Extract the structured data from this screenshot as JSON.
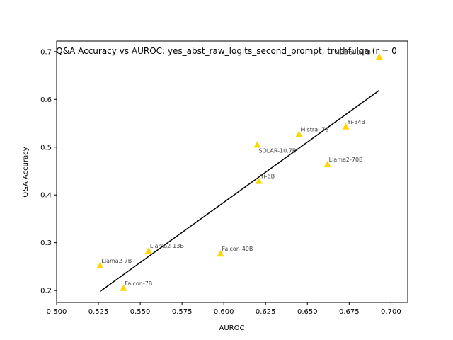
{
  "chart_data": {
    "type": "scatter",
    "title": "Q&A Accuracy vs AUROC: yes_abst_raw_logits_second_prompt, truthfulqa (r = 0",
    "xlabel": "AUROC",
    "ylabel": "Q&A Accuracy",
    "xlim": [
      0.5,
      0.71
    ],
    "ylim": [
      0.175,
      0.722
    ],
    "xticks": [
      0.5,
      0.525,
      0.55,
      0.575,
      0.6,
      0.625,
      0.65,
      0.675,
      0.7
    ],
    "xtick_labels": [
      "0.500",
      "0.525",
      "0.550",
      "0.575",
      "0.600",
      "0.625",
      "0.650",
      "0.675",
      "0.700"
    ],
    "yticks": [
      0.2,
      0.3,
      0.4,
      0.5,
      0.6,
      0.7
    ],
    "ytick_labels": [
      "0.2",
      "0.3",
      "0.4",
      "0.5",
      "0.6",
      "0.7"
    ],
    "marker_color": "#ffd700",
    "fit_line_color": "#000000",
    "points": [
      {
        "label": "Mixtral-8x7B",
        "x": 0.693,
        "y": 0.689
      },
      {
        "label": "Yi-34B",
        "x": 0.673,
        "y": 0.543
      },
      {
        "label": "Mistral-7B",
        "x": 0.645,
        "y": 0.527
      },
      {
        "label": "SOLAR-10.7B",
        "x": 0.62,
        "y": 0.505
      },
      {
        "label": "Llama2-70B",
        "x": 0.662,
        "y": 0.464
      },
      {
        "label": "Yi-6B",
        "x": 0.621,
        "y": 0.429
      },
      {
        "label": "Llama2-13B",
        "x": 0.555,
        "y": 0.283
      },
      {
        "label": "Falcon-40B",
        "x": 0.598,
        "y": 0.277
      },
      {
        "label": "Llama2-7B",
        "x": 0.526,
        "y": 0.252
      },
      {
        "label": "Falcon-7B",
        "x": 0.54,
        "y": 0.205
      }
    ],
    "fit_line": {
      "x": [
        0.526,
        0.693
      ],
      "y": [
        0.198,
        0.619
      ]
    }
  }
}
